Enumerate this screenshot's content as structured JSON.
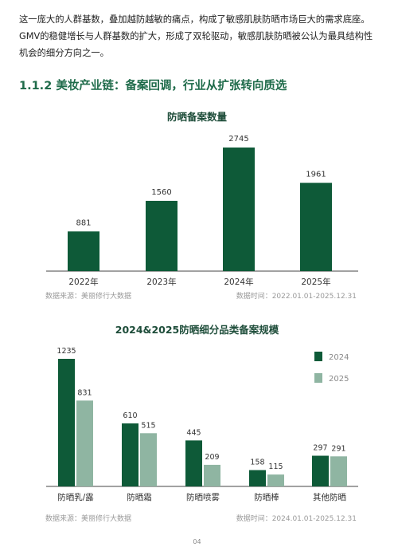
{
  "intro_text": "这一庞大的人群基数，叠加越防越敏的痛点，构成了敏感肌肤防晒市场巨大的需求底座。GMV的稳健增长与人群基数的扩大，形成了双轮驱动，敏感肌肤防晒被公认为最具结构性机会的细分方向之一。",
  "section_title": "1.1.2 美妆产业链：备案回调，行业从扩张转向质选",
  "chart1": {
    "source_left": "数据来源：美丽修行大数据",
    "source_right": "数据时间：2022.01.01-2025.12.31"
  },
  "chart2": {
    "source_left": "数据来源：美丽修行大数据",
    "source_right": "数据时间：2024.01.01-2025.12.31"
  },
  "page_number": "04",
  "colors": {
    "dark_green": "#0e5a38",
    "light_green": "#8fb5a2",
    "heading_green": "#1f6b4a"
  },
  "chart_data": [
    {
      "type": "bar",
      "title": "防晒备案数量",
      "categories": [
        "2022年",
        "2023年",
        "2024年",
        "2025年"
      ],
      "values": [
        881,
        1560,
        2745,
        1961
      ],
      "xlabel": "",
      "ylabel": "",
      "ylim": [
        0,
        2745
      ],
      "grid": false
    },
    {
      "type": "bar",
      "title": "2024&2025防晒细分品类备案规模",
      "categories": [
        "防晒乳/露",
        "防晒霜",
        "防晒喷雾",
        "防晒棒",
        "其他防晒"
      ],
      "series": [
        {
          "name": "2024",
          "values": [
            1235,
            610,
            445,
            158,
            297
          ]
        },
        {
          "name": "2025",
          "values": [
            831,
            515,
            209,
            115,
            291
          ]
        }
      ],
      "ylim": [
        0,
        1235
      ],
      "legend": "top-right",
      "grid": false
    }
  ]
}
